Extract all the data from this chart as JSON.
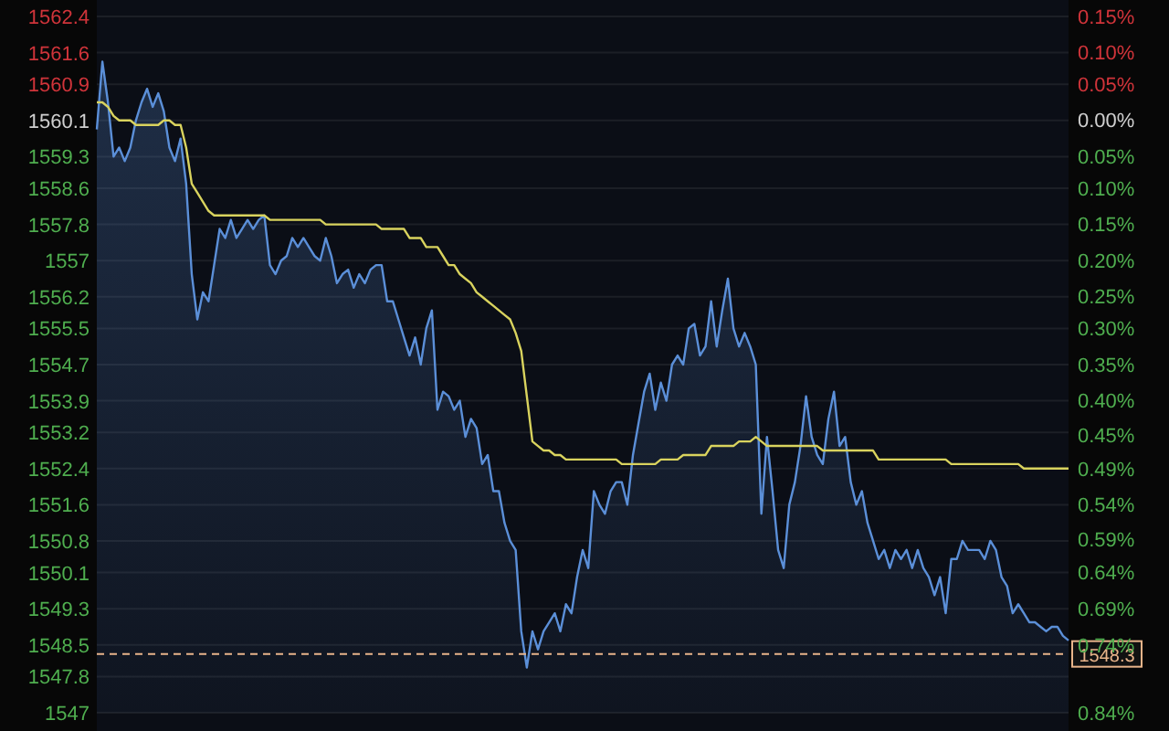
{
  "chart_data": {
    "type": "line",
    "categories": [
      null,
      null,
      null,
      null,
      null,
      null,
      null,
      null,
      null,
      null,
      null,
      null,
      null,
      null,
      null,
      null,
      null,
      null,
      null,
      null,
      null,
      null,
      null,
      null,
      null,
      null,
      null,
      null,
      null,
      null,
      null,
      null,
      null,
      null,
      null,
      null,
      null,
      null,
      null,
      null,
      null,
      null,
      null,
      null,
      null,
      null,
      null,
      null,
      null,
      null,
      null,
      null,
      null,
      null,
      null,
      null,
      null,
      null,
      null,
      null,
      null,
      null,
      null,
      null,
      null,
      null,
      null,
      null,
      null,
      null,
      null,
      null,
      null,
      null,
      null,
      null,
      null,
      null,
      null,
      null,
      null,
      null,
      null,
      null,
      null,
      null,
      null,
      null,
      null,
      null,
      null,
      null,
      null,
      null,
      null,
      null,
      null,
      null,
      null,
      null,
      null,
      null,
      null,
      null,
      null,
      null,
      null,
      null,
      null,
      null,
      null,
      null,
      null,
      null,
      null,
      null,
      null,
      null,
      null,
      null,
      null,
      null,
      null,
      null,
      null,
      null,
      null,
      null,
      null,
      null,
      null,
      null,
      null,
      null,
      null,
      null,
      null,
      null,
      null,
      null,
      null,
      null,
      null,
      null,
      null,
      null,
      null,
      null,
      null,
      null,
      null,
      null,
      null,
      null,
      null,
      null,
      null,
      null,
      null,
      null,
      null,
      null,
      null,
      null,
      null,
      null,
      null,
      null,
      null,
      null,
      null,
      null,
      null,
      null,
      null
    ],
    "series": [
      {
        "type": "area",
        "color": "#5b8fd8",
        "values": [
          1559.9,
          1561.4,
          1560.5,
          1559.3,
          1559.5,
          1559.2,
          1559.5,
          1560.1,
          1560.5,
          1560.8,
          1560.4,
          1560.7,
          1560.3,
          1559.5,
          1559.2,
          1559.7,
          1558.7,
          1556.7,
          1555.7,
          1556.3,
          1556.1,
          1556.9,
          1557.7,
          1557.5,
          1557.9,
          1557.5,
          1557.7,
          1557.9,
          1557.7,
          1557.9,
          1558.0,
          1556.9,
          1556.7,
          1557.0,
          1557.1,
          1557.5,
          1557.3,
          1557.5,
          1557.3,
          1557.1,
          1557.0,
          1557.5,
          1557.1,
          1556.5,
          1556.7,
          1556.8,
          1556.4,
          1556.7,
          1556.5,
          1556.8,
          1556.9,
          1556.9,
          1556.1,
          1556.1,
          1555.7,
          1555.3,
          1554.9,
          1555.3,
          1554.7,
          1555.5,
          1555.9,
          1553.7,
          1554.1,
          1554.0,
          1553.7,
          1553.9,
          1553.1,
          1553.5,
          1553.3,
          1552.5,
          1552.7,
          1551.9,
          1551.9,
          1551.2,
          1550.8,
          1550.6,
          1548.8,
          1548.0,
          1548.8,
          1548.4,
          1548.8,
          1549.0,
          1549.2,
          1548.8,
          1549.4,
          1549.2,
          1550.0,
          1550.6,
          1550.2,
          1551.9,
          1551.6,
          1551.4,
          1551.9,
          1552.1,
          1552.1,
          1551.6,
          1552.7,
          1553.4,
          1554.1,
          1554.5,
          1553.7,
          1554.3,
          1553.9,
          1554.7,
          1554.9,
          1554.7,
          1555.5,
          1555.6,
          1554.9,
          1555.1,
          1556.1,
          1555.1,
          1555.9,
          1556.6,
          1555.5,
          1555.1,
          1555.4,
          1555.1,
          1554.7,
          1551.4,
          1553.1,
          1551.9,
          1550.6,
          1550.2,
          1551.6,
          1552.1,
          1552.9,
          1554.0,
          1553.1,
          1552.7,
          1552.5,
          1553.5,
          1554.1,
          1552.9,
          1553.1,
          1552.1,
          1551.6,
          1551.9,
          1551.2,
          1550.8,
          1550.4,
          1550.6,
          1550.2,
          1550.6,
          1550.4,
          1550.6,
          1550.2,
          1550.6,
          1550.2,
          1550.0,
          1549.6,
          1550.0,
          1549.2,
          1550.4,
          1550.4,
          1550.8,
          1550.6,
          1550.6,
          1550.6,
          1550.4,
          1550.8,
          1550.6,
          1550.0,
          1549.8,
          1549.2,
          1549.4,
          1549.2,
          1549.0,
          1549.0,
          1548.9,
          1548.8,
          1548.9,
          1548.9,
          1548.7,
          1548.6
        ]
      },
      {
        "color": "#d9d35e",
        "values": [
          1560.5,
          1560.5,
          1560.4,
          1560.2,
          1560.1,
          1560.1,
          1560.1,
          1560.0,
          1560.0,
          1560.0,
          1560.0,
          1560.0,
          1560.1,
          1560.1,
          1560.0,
          1560.0,
          1559.5,
          1558.7,
          1558.5,
          1558.3,
          1558.1,
          1558.0,
          1558.0,
          1558.0,
          1558.0,
          1558.0,
          1558.0,
          1558.0,
          1558.0,
          1558.0,
          1558.0,
          1557.9,
          1557.9,
          1557.9,
          1557.9,
          1557.9,
          1557.9,
          1557.9,
          1557.9,
          1557.9,
          1557.9,
          1557.8,
          1557.8,
          1557.8,
          1557.8,
          1557.8,
          1557.8,
          1557.8,
          1557.8,
          1557.8,
          1557.8,
          1557.7,
          1557.7,
          1557.7,
          1557.7,
          1557.7,
          1557.5,
          1557.5,
          1557.5,
          1557.3,
          1557.3,
          1557.3,
          1557.1,
          1556.9,
          1556.9,
          1556.7,
          1556.6,
          1556.5,
          1556.3,
          1556.2,
          1556.1,
          1556.0,
          1555.9,
          1555.8,
          1555.7,
          1555.4,
          1555.0,
          1554.0,
          1553.0,
          1552.9,
          1552.8,
          1552.8,
          1552.7,
          1552.7,
          1552.6,
          1552.6,
          1552.6,
          1552.6,
          1552.6,
          1552.6,
          1552.6,
          1552.6,
          1552.6,
          1552.6,
          1552.5,
          1552.5,
          1552.5,
          1552.5,
          1552.5,
          1552.5,
          1552.5,
          1552.6,
          1552.6,
          1552.6,
          1552.6,
          1552.7,
          1552.7,
          1552.7,
          1552.7,
          1552.7,
          1552.9,
          1552.9,
          1552.9,
          1552.9,
          1552.9,
          1553.0,
          1553.0,
          1553.0,
          1553.1,
          1553.0,
          1552.9,
          1552.9,
          1552.9,
          1552.9,
          1552.9,
          1552.9,
          1552.9,
          1552.9,
          1552.9,
          1552.9,
          1552.8,
          1552.8,
          1552.8,
          1552.8,
          1552.8,
          1552.8,
          1552.8,
          1552.8,
          1552.8,
          1552.8,
          1552.6,
          1552.6,
          1552.6,
          1552.6,
          1552.6,
          1552.6,
          1552.6,
          1552.6,
          1552.6,
          1552.6,
          1552.6,
          1552.6,
          1552.6,
          1552.5,
          1552.5,
          1552.5,
          1552.5,
          1552.5,
          1552.5,
          1552.5,
          1552.5,
          1552.5,
          1552.5,
          1552.5,
          1552.5,
          1552.5,
          1552.4,
          1552.4,
          1552.4,
          1552.4,
          1552.4,
          1552.4,
          1552.4,
          1552.4,
          1552.4
        ]
      }
    ],
    "ylim": [
      1547.0,
      1562.4
    ],
    "yticks": [
      1547.0,
      1547.8,
      1548.5,
      1549.3,
      1550.1,
      1550.8,
      1551.6,
      1552.4,
      1553.2,
      1553.9,
      1554.7,
      1555.5,
      1556.2,
      1557.0,
      1557.8,
      1558.6,
      1559.3,
      1560.1,
      1560.9,
      1561.6,
      1562.4
    ],
    "y2lim": [
      -0.84,
      0.147
    ],
    "y2ticks": [
      {
        "value": 0.147,
        "label": "0.15%"
      },
      {
        "value": 0.096,
        "label": "0.10%"
      },
      {
        "value": 0.051,
        "label": "0.05%"
      },
      {
        "value": 0,
        "label": "0.00%"
      },
      {
        "value": -0.051,
        "label": "0.05%"
      },
      {
        "value": -0.096,
        "label": "0.10%"
      },
      {
        "value": -0.147,
        "label": "0.15%"
      },
      {
        "value": -0.199,
        "label": "0.20%"
      },
      {
        "value": -0.25,
        "label": "0.25%"
      },
      {
        "value": -0.295,
        "label": "0.30%"
      },
      {
        "value": -0.346,
        "label": "0.35%"
      },
      {
        "value": -0.397,
        "label": "0.40%"
      },
      {
        "value": -0.446,
        "label": "0.45%"
      },
      {
        "value": -0.494,
        "label": "0.49%"
      },
      {
        "value": -0.545,
        "label": "0.54%"
      },
      {
        "value": -0.594,
        "label": "0.59%"
      },
      {
        "value": -0.641,
        "label": "0.64%"
      },
      {
        "value": -0.692,
        "label": "0.69%"
      },
      {
        "value": -0.744,
        "label": "0.74%"
      },
      {
        "value": -0.84,
        "label": "0.84%"
      }
    ],
    "ref_lines": [
      {
        "axis": "y",
        "value": 1548.3,
        "label": "1548.3",
        "color": "#e8b48a",
        "line_style": "dashed"
      }
    ],
    "grid": "y",
    "tick_labels": "y"
  }
}
